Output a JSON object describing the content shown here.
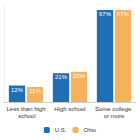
{
  "chart_data": {
    "type": "bar",
    "categories": [
      "Less than high school",
      "High school",
      "Some college or more"
    ],
    "series": [
      {
        "name": "U.S.",
        "color": "#1f6fb2",
        "values": [
          12,
          21,
          67
        ],
        "value_labels": [
          "12%",
          "21%",
          "67%"
        ]
      },
      {
        "name": "Ohio",
        "color": "#f7b15d",
        "values": [
          11,
          22,
          67
        ],
        "value_labels": [
          "11%",
          "22%",
          "67%"
        ]
      }
    ],
    "ylim": [
      0,
      70
    ],
    "data_labels": true,
    "legend": "bottom",
    "grid": false,
    "tick_labels": "x"
  }
}
